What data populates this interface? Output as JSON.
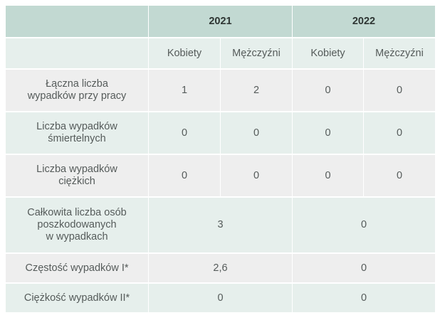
{
  "header": {
    "years": [
      "2021",
      "2022"
    ],
    "subcolumns": [
      "Kobiety",
      "Mężczyźni",
      "Kobiety",
      "Mężczyźni"
    ]
  },
  "rows": [
    {
      "label": "Łączna liczba\nwypadków przy pracy",
      "values": [
        "1",
        "2",
        "0",
        "0"
      ]
    },
    {
      "label": "Liczba wypadków\nśmiertelnych",
      "values": [
        "0",
        "0",
        "0",
        "0"
      ]
    },
    {
      "label": "Liczba wypadków\nciężkich",
      "values": [
        "0",
        "0",
        "0",
        "0"
      ]
    },
    {
      "label": "Całkowita liczba osób\nposzkodowanych\nw wypadkach",
      "values": [
        "3",
        "0"
      ]
    },
    {
      "label": "Częstość wypadków I*",
      "values": [
        "2,6",
        "0"
      ]
    },
    {
      "label": "Ciężkość wypadków II*",
      "values": [
        "0",
        "0"
      ]
    }
  ]
}
